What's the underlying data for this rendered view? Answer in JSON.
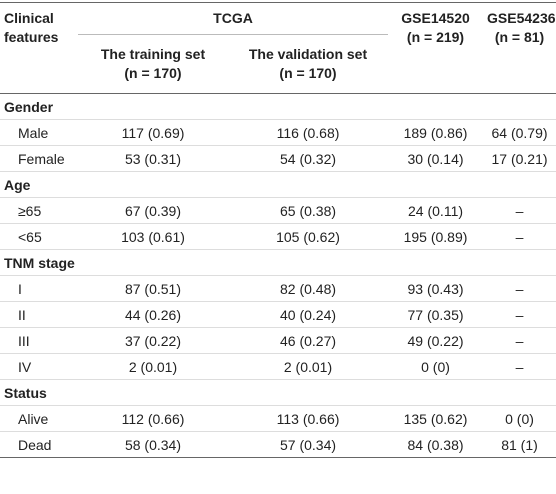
{
  "header": {
    "features": "Clinical features",
    "group": "TCGA",
    "columns": [
      {
        "line1": "The training set",
        "line2": "(n = 170)"
      },
      {
        "line1": "The validation set",
        "line2": "(n = 170)"
      },
      {
        "line1": "GSE14520",
        "line2": "(n = 219)"
      },
      {
        "line1": "GSE54236",
        "line2": "(n = 81)"
      }
    ]
  },
  "sections": [
    {
      "title": "Gender",
      "rows": [
        {
          "label": "Male",
          "cells": [
            "117 (0.69)",
            "116 (0.68)",
            "189 (0.86)",
            "64 (0.79)"
          ]
        },
        {
          "label": "Female",
          "cells": [
            "53 (0.31)",
            "54 (0.32)",
            "30 (0.14)",
            "17 (0.21)"
          ]
        }
      ]
    },
    {
      "title": "Age",
      "rows": [
        {
          "label": "≥65",
          "cells": [
            "67 (0.39)",
            "65 (0.38)",
            "24 (0.11)",
            "–"
          ]
        },
        {
          "label": "<65",
          "cells": [
            "103 (0.61)",
            "105 (0.62)",
            "195 (0.89)",
            "–"
          ]
        }
      ]
    },
    {
      "title": "TNM stage",
      "rows": [
        {
          "label": "I",
          "cells": [
            "87 (0.51)",
            "82 (0.48)",
            "93 (0.43)",
            "–"
          ]
        },
        {
          "label": "II",
          "cells": [
            "44 (0.26)",
            "40 (0.24)",
            "77 (0.35)",
            "–"
          ]
        },
        {
          "label": "III",
          "cells": [
            "37 (0.22)",
            "46 (0.27)",
            "49 (0.22)",
            "–"
          ]
        },
        {
          "label": "IV",
          "cells": [
            "2 (0.01)",
            "2 (0.01)",
            "0 (0)",
            "–"
          ]
        }
      ]
    },
    {
      "title": "Status",
      "rows": [
        {
          "label": "Alive",
          "cells": [
            "112 (0.66)",
            "113 (0.66)",
            "135 (0.62)",
            "0 (0)"
          ]
        },
        {
          "label": "Dead",
          "cells": [
            "58 (0.34)",
            "57 (0.34)",
            "84 (0.38)",
            "81 (1)"
          ]
        }
      ]
    }
  ]
}
